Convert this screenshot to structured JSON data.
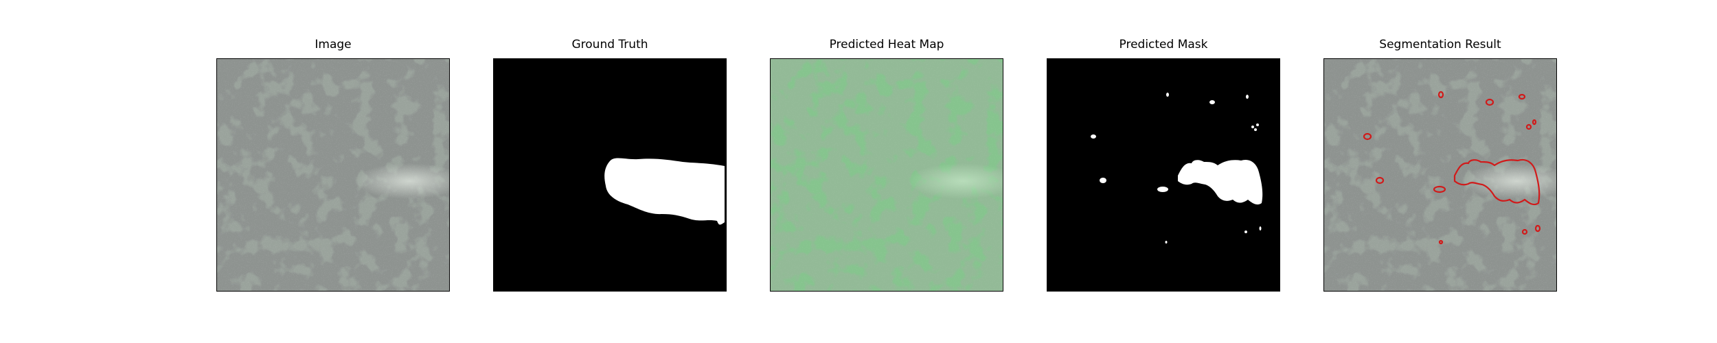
{
  "figure": {
    "panels": [
      {
        "id": "image",
        "title": "Image"
      },
      {
        "id": "ground_truth",
        "title": "Ground Truth"
      },
      {
        "id": "heat_map",
        "title": "Predicted Heat Map"
      },
      {
        "id": "mask",
        "title": "Predicted Mask"
      },
      {
        "id": "segmentation",
        "title": "Segmentation Result"
      }
    ],
    "colors": {
      "background": "#ffffff",
      "texture_light": "#9aa39c",
      "texture_dark": "#3c3f3d",
      "heat_light": "#86c48e",
      "heat_dark": "#4a7c4f",
      "mask_bg": "#000000",
      "mask_fg": "#ffffff",
      "contour": "#d11a1a"
    }
  }
}
